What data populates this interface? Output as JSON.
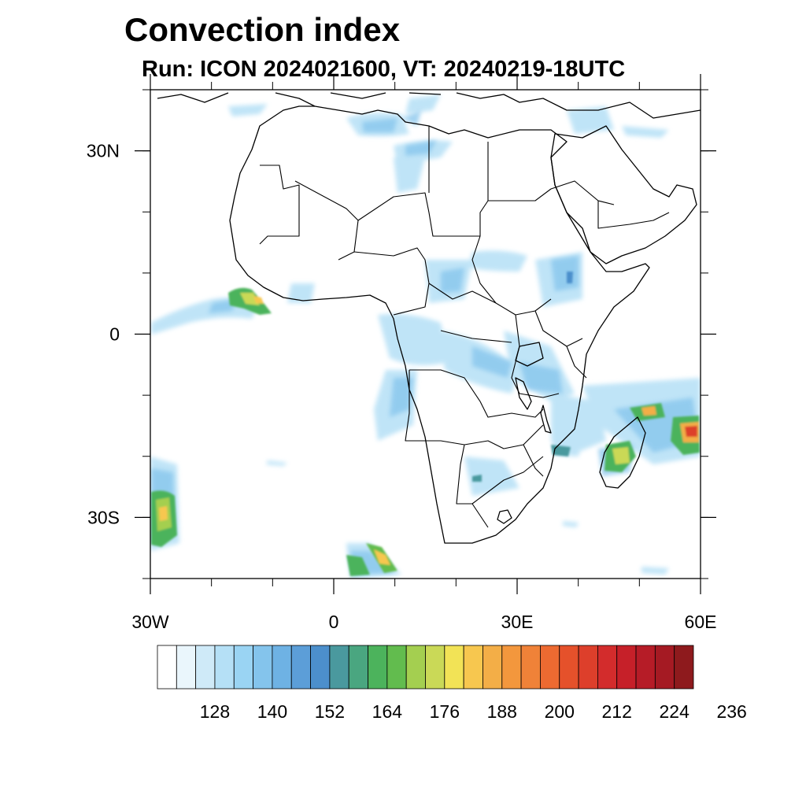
{
  "title": "Convection index",
  "subtitle": "Run: ICON 2024021600,  VT: 20240219-18UTC",
  "map": {
    "region": "Africa",
    "projection": "cylindrical equidistant",
    "lon_range": [
      -30,
      60
    ],
    "lat_range": [
      -40,
      40
    ],
    "x_ticks": [
      {
        "lon": -30,
        "label": "30W"
      },
      {
        "lon": 0,
        "label": "0"
      },
      {
        "lon": 30,
        "label": "30E"
      },
      {
        "lon": 60,
        "label": "60E"
      }
    ],
    "y_ticks": [
      {
        "lat": 30,
        "label": "30N"
      },
      {
        "lat": 0,
        "label": "0"
      },
      {
        "lat": -30,
        "label": "30S"
      }
    ],
    "minor_lon_step": 10,
    "minor_lat_step": 10
  },
  "colorbar": {
    "min": 116,
    "step": 4,
    "colors": [
      "#ffffff",
      "#eaf6fc",
      "#cfeaf8",
      "#b5e0f6",
      "#9ad4f3",
      "#84c4ec",
      "#6eb2e4",
      "#5c9ed8",
      "#4c8fcc",
      "#4a999e",
      "#4aa680",
      "#4cb35c",
      "#62bc4e",
      "#a4cf50",
      "#cad957",
      "#f2e356",
      "#f7c74f",
      "#f3ae47",
      "#f3973d",
      "#f08238",
      "#ed6a31",
      "#e5512b",
      "#dd3f2b",
      "#d32c2c",
      "#c62029",
      "#b61c27",
      "#a51a23",
      "#8e1a1d"
    ],
    "labels": [
      "128",
      "140",
      "152",
      "164",
      "176",
      "188",
      "200",
      "212",
      "224",
      "236"
    ]
  }
}
